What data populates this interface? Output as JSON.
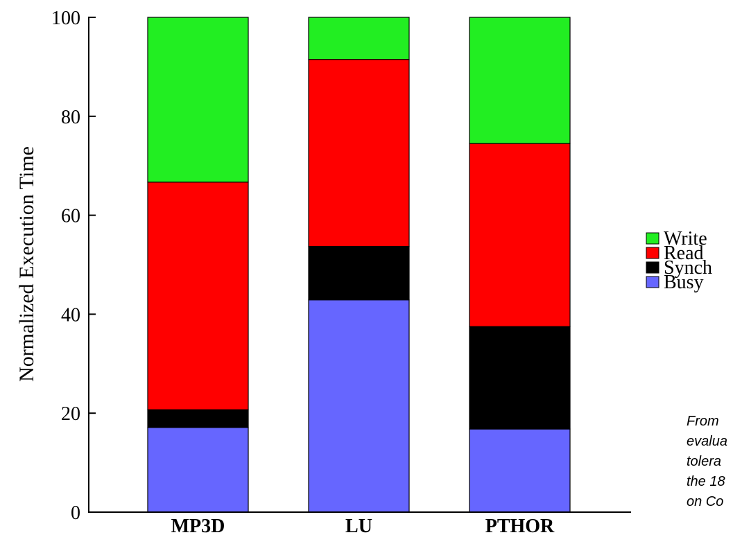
{
  "chart_data": {
    "type": "bar",
    "stacked": true,
    "categories": [
      "MP3D",
      "LU",
      "PTHOR"
    ],
    "series": [
      {
        "name": "Busy",
        "color": "#6666ff",
        "values": [
          17.1,
          42.9,
          16.8
        ]
      },
      {
        "name": "Synch",
        "color": "#000000",
        "values": [
          3.6,
          10.8,
          20.7
        ]
      },
      {
        "name": "Read",
        "color": "#ff0000",
        "values": [
          46.0,
          37.8,
          37.0
        ]
      },
      {
        "name": "Write",
        "color": "#22ee22",
        "values": [
          33.3,
          8.5,
          25.5
        ]
      }
    ],
    "legend_order": [
      "Write",
      "Read",
      "Synch",
      "Busy"
    ],
    "legend_position": "right",
    "title": "",
    "xlabel": "",
    "ylabel": "Normalized Execution Time",
    "ylim": [
      0,
      100
    ],
    "yticks": [
      0,
      20,
      40,
      60,
      80,
      100
    ],
    "grid": false,
    "note_lines": [
      "From",
      "evalua",
      "tolera",
      "the 18",
      "on Co"
    ]
  }
}
